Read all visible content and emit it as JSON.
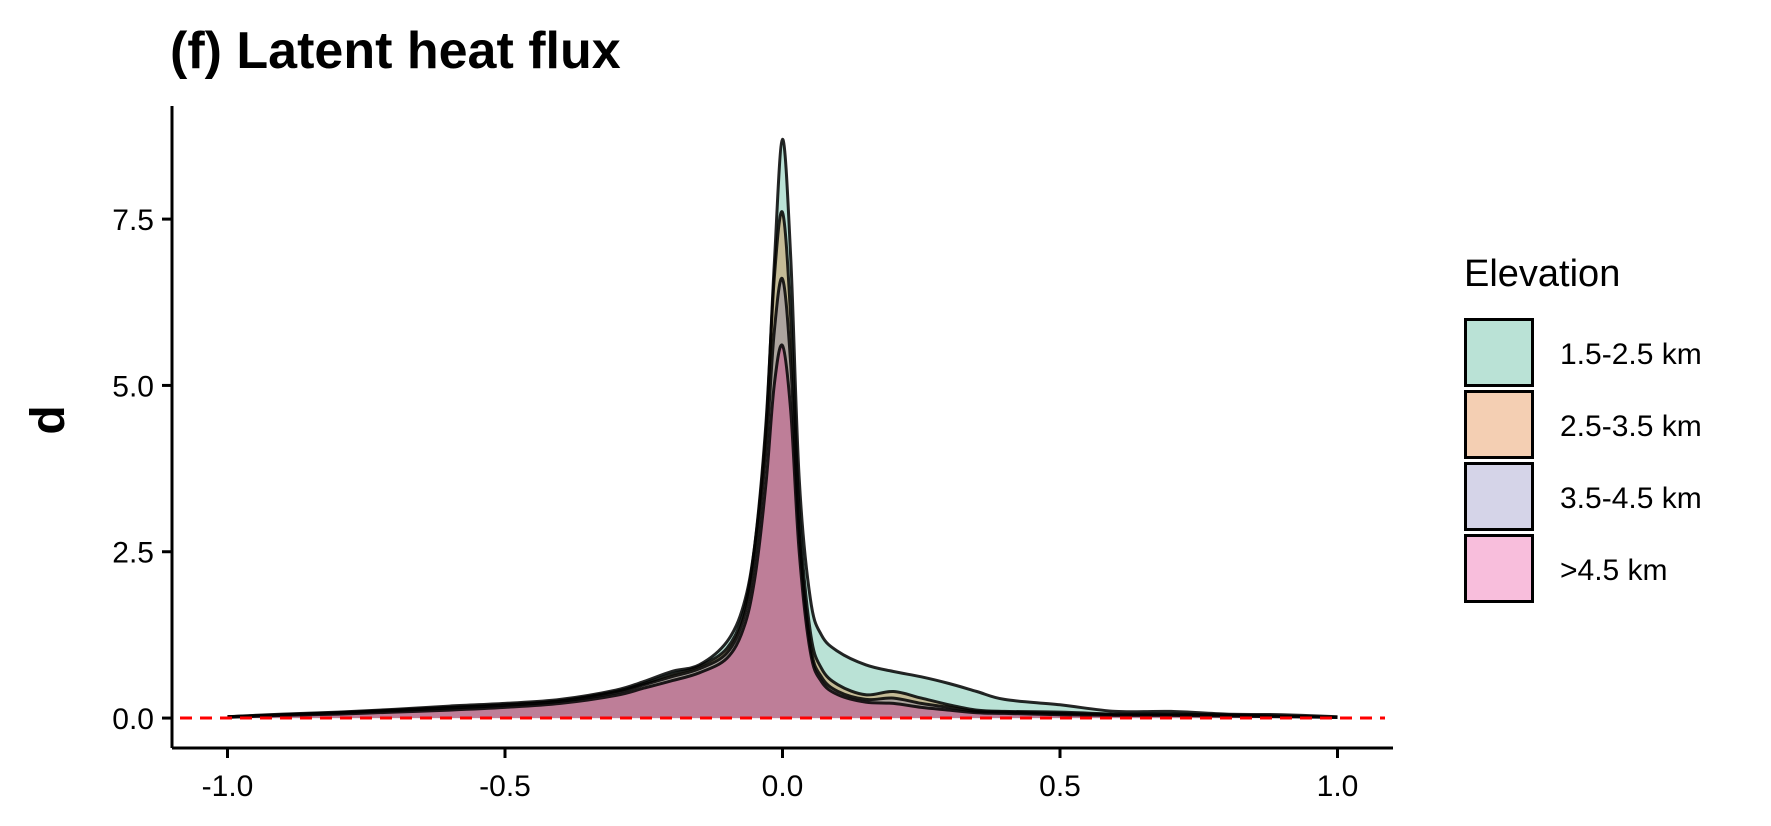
{
  "chart_data": {
    "type": "area",
    "title": "(f) Latent heat flux",
    "xlabel": "",
    "ylabel": "d",
    "xlim": [
      -1.1,
      1.1
    ],
    "ylim": [
      -0.45,
      9.2
    ],
    "x_ticks": [
      -1.0,
      -0.5,
      0.0,
      0.5,
      1.0
    ],
    "x_tick_labels": [
      "-1.0",
      "-0.5",
      "0.0",
      "0.5",
      "1.0"
    ],
    "y_ticks": [
      0.0,
      2.5,
      5.0,
      7.5
    ],
    "y_tick_labels": [
      "0.0",
      "2.5",
      "5.0",
      "7.5"
    ],
    "grid": false,
    "reference_line": {
      "y": 0.0,
      "color": "#ff0000",
      "style": "dashed"
    },
    "legend": {
      "title": "Elevation",
      "placement": "right"
    },
    "x": [
      -1.0,
      -0.9,
      -0.8,
      -0.7,
      -0.6,
      -0.5,
      -0.4,
      -0.3,
      -0.25,
      -0.2,
      -0.15,
      -0.1,
      -0.07,
      -0.05,
      -0.03,
      -0.015,
      0.0,
      0.015,
      0.03,
      0.05,
      0.07,
      0.1,
      0.15,
      0.2,
      0.25,
      0.3,
      0.35,
      0.4,
      0.5,
      0.6,
      0.7,
      0.8,
      0.9,
      1.0
    ],
    "series": [
      {
        "name": "1.5-2.5 km",
        "color": "#1b9e77",
        "values": [
          0.02,
          0.06,
          0.09,
          0.13,
          0.18,
          0.22,
          0.28,
          0.42,
          0.55,
          0.7,
          0.8,
          1.15,
          1.7,
          2.6,
          4.3,
          6.8,
          8.7,
          6.9,
          3.6,
          1.8,
          1.25,
          1.0,
          0.8,
          0.7,
          0.62,
          0.52,
          0.4,
          0.28,
          0.2,
          0.1,
          0.1,
          0.06,
          0.05,
          0.02
        ]
      },
      {
        "name": "2.5-3.5 km",
        "color": "#d95f02",
        "values": [
          0.02,
          0.05,
          0.08,
          0.12,
          0.16,
          0.2,
          0.26,
          0.4,
          0.52,
          0.66,
          0.78,
          1.05,
          1.6,
          2.6,
          4.4,
          6.6,
          7.6,
          6.0,
          3.1,
          1.3,
          0.75,
          0.5,
          0.35,
          0.4,
          0.3,
          0.2,
          0.12,
          0.1,
          0.09,
          0.06,
          0.06,
          0.05,
          0.03,
          0.01
        ]
      },
      {
        "name": "3.5-4.5 km",
        "color": "#7570b3",
        "values": [
          0.02,
          0.05,
          0.08,
          0.11,
          0.15,
          0.19,
          0.25,
          0.38,
          0.5,
          0.62,
          0.74,
          0.98,
          1.5,
          2.4,
          4.0,
          5.8,
          6.6,
          5.3,
          2.8,
          1.1,
          0.62,
          0.4,
          0.28,
          0.3,
          0.22,
          0.16,
          0.1,
          0.09,
          0.07,
          0.05,
          0.05,
          0.04,
          0.03,
          0.01
        ]
      },
      {
        "name": ">4.5 km",
        "color": "#e7298a",
        "values": [
          0.01,
          0.04,
          0.06,
          0.09,
          0.12,
          0.16,
          0.22,
          0.34,
          0.45,
          0.56,
          0.68,
          0.9,
          1.35,
          2.1,
          3.5,
          5.0,
          5.6,
          4.6,
          2.5,
          1.0,
          0.55,
          0.35,
          0.24,
          0.22,
          0.16,
          0.12,
          0.08,
          0.07,
          0.05,
          0.04,
          0.04,
          0.03,
          0.02,
          0.01
        ]
      }
    ]
  }
}
